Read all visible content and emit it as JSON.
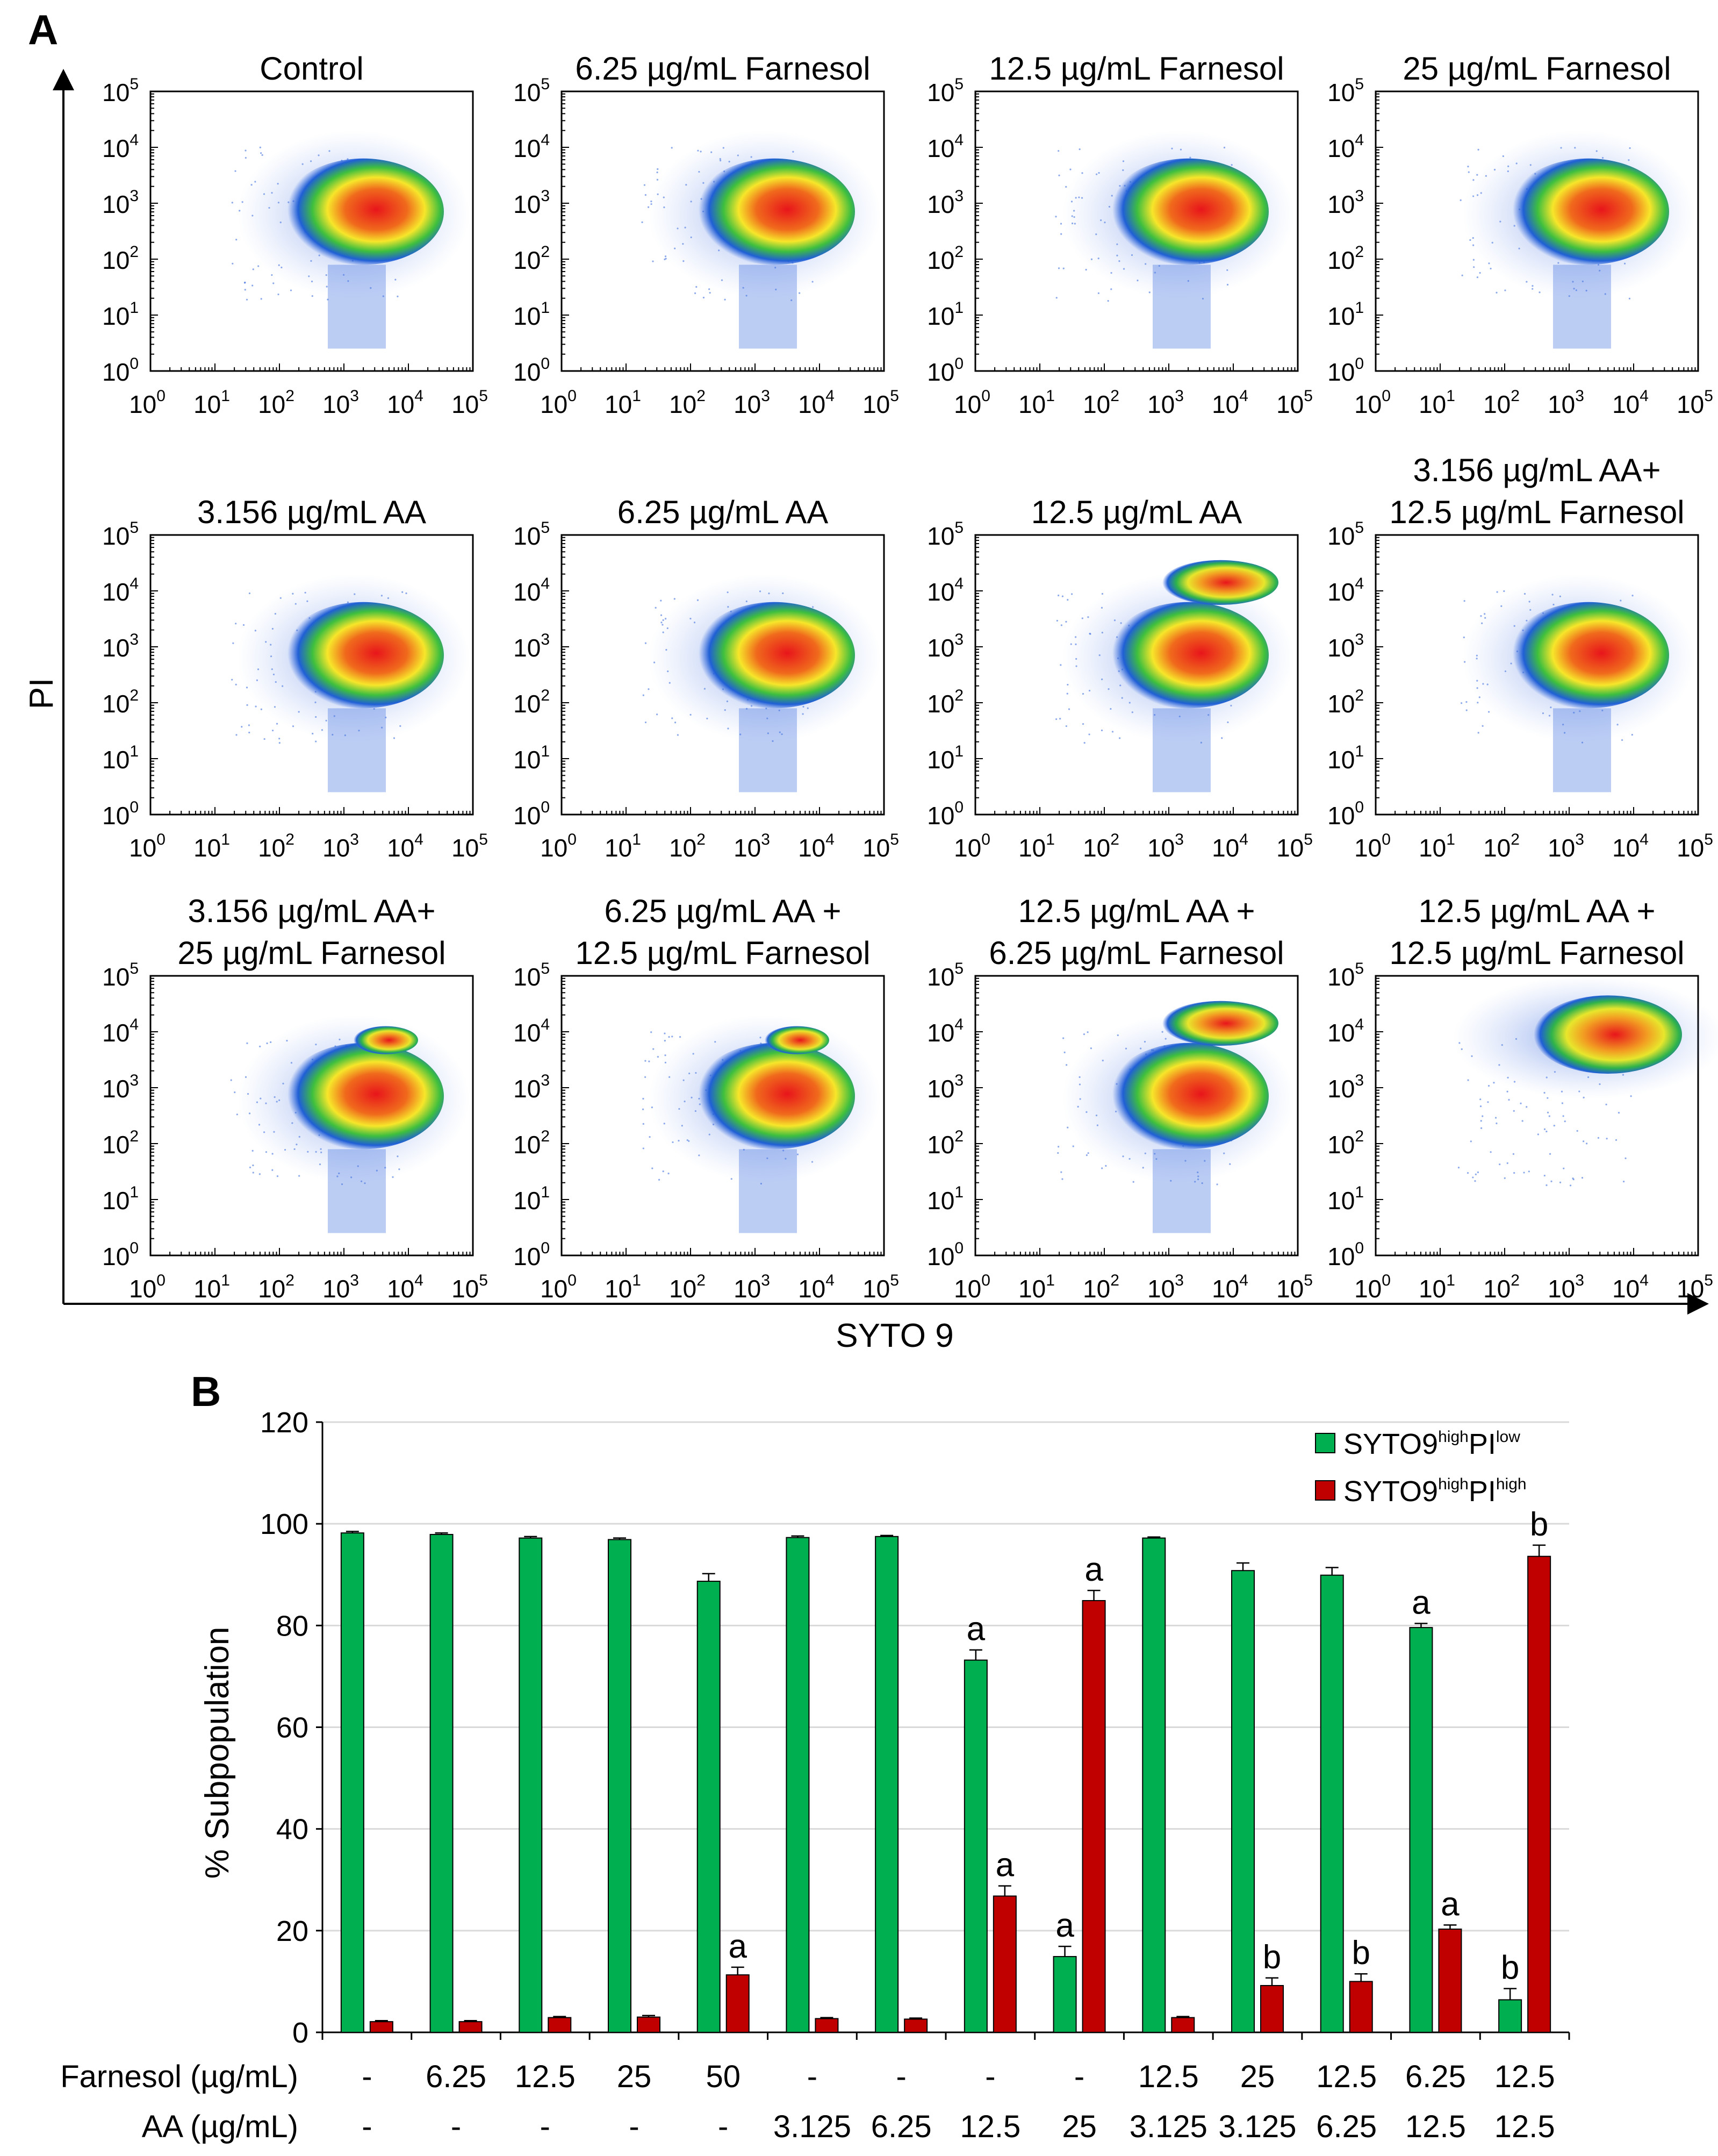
{
  "panel_a": {
    "letter": "A",
    "y_axis_label": "PI",
    "x_axis_label": "SYTO 9",
    "tick_base": "10",
    "tick_exponents": [
      "0",
      "1",
      "2",
      "3",
      "4",
      "5"
    ],
    "plots": [
      {
        "title": [
          "Control"
        ],
        "populations": [
          "low"
        ]
      },
      {
        "title": [
          "6.25 µg/mL Farnesol"
        ],
        "populations": [
          "low"
        ]
      },
      {
        "title": [
          "12.5 µg/mL Farnesol"
        ],
        "populations": [
          "low"
        ]
      },
      {
        "title": [
          "25 µg/mL Farnesol"
        ],
        "populations": [
          "low"
        ]
      },
      {
        "title": [
          "3.156 µg/mL AA"
        ],
        "populations": [
          "low"
        ]
      },
      {
        "title": [
          "6.25 µg/mL AA"
        ],
        "populations": [
          "low"
        ]
      },
      {
        "title": [
          "12.5 µg/mL AA"
        ],
        "populations": [
          "low",
          "high"
        ]
      },
      {
        "title": [
          "3.156 µg/mL AA+",
          "12.5 µg/mL Farnesol"
        ],
        "populations": [
          "low"
        ]
      },
      {
        "title": [
          "3.156 µg/mL AA+",
          "25 µg/mL Farnesol"
        ],
        "populations": [
          "low",
          "high-small"
        ]
      },
      {
        "title": [
          "6.25 µg/mL AA +",
          "12.5 µg/mL Farnesol"
        ],
        "populations": [
          "low",
          "high-small"
        ]
      },
      {
        "title": [
          "12.5 µg/mL AA +",
          "6.25 µg/mL Farnesol"
        ],
        "populations": [
          "low",
          "high"
        ]
      },
      {
        "title": [
          "12.5 µg/mL AA +",
          "12.5 µg/mL Farnesol"
        ],
        "populations": [
          "top"
        ]
      }
    ]
  },
  "chart_data": {
    "type": "bar",
    "panel_letter": "B",
    "ylabel": "% Subpopulation",
    "ylim": [
      0,
      120
    ],
    "yticks": [
      "0",
      "20",
      "40",
      "60",
      "80",
      "100",
      "120"
    ],
    "grid": true,
    "legend_position": "top-right",
    "row_labels": [
      "Farnesol (µg/mL)",
      "AA (µg/mL)"
    ],
    "farnesol": [
      "-",
      "6.25",
      "12.5",
      "25",
      "50",
      "-",
      "-",
      "-",
      "-",
      "12.5",
      "25",
      "12.5",
      "6.25",
      "12.5"
    ],
    "aa": [
      "-",
      "-",
      "-",
      "-",
      "-",
      "3.125",
      "6.25",
      "12.5",
      "25",
      "3.125",
      "3.125",
      "6.25",
      "12.5",
      "12.5"
    ],
    "series": [
      {
        "name": "SYTO9highPIlow",
        "legend_main": "SYTO9",
        "legend_sup1": "high",
        "legend_mid": "PI",
        "legend_sup2": "low",
        "color": "#00b050",
        "values": [
          98.2,
          97.9,
          97.2,
          96.9,
          88.7,
          97.3,
          97.5,
          73.2,
          14.9,
          97.2,
          90.8,
          89.9,
          79.6,
          6.4
        ],
        "errors": [
          0.3,
          0.3,
          0.3,
          0.3,
          1.5,
          0.3,
          0.2,
          2.0,
          2.0,
          0.2,
          1.5,
          1.5,
          0.8,
          2.2
        ],
        "labels": [
          "",
          "",
          "",
          "",
          "",
          "",
          "",
          "a",
          "a",
          "",
          "",
          "",
          "a",
          "b"
        ]
      },
      {
        "name": "SYTO9highPIhigh",
        "legend_main": "SYTO9",
        "legend_sup1": "high",
        "legend_mid": "PI",
        "legend_sup2": "high",
        "color": "#c00000",
        "values": [
          2.1,
          2.1,
          2.9,
          3.0,
          11.3,
          2.7,
          2.6,
          26.8,
          84.9,
          2.9,
          9.2,
          10.0,
          20.3,
          93.6
        ],
        "errors": [
          0.2,
          0.2,
          0.2,
          0.3,
          1.5,
          0.2,
          0.2,
          2.0,
          2.0,
          0.2,
          1.5,
          1.5,
          0.8,
          2.2
        ],
        "labels": [
          "",
          "",
          "",
          "",
          "a",
          "",
          "",
          "a",
          "a",
          "",
          "b",
          "b",
          "a",
          "b"
        ]
      }
    ]
  }
}
